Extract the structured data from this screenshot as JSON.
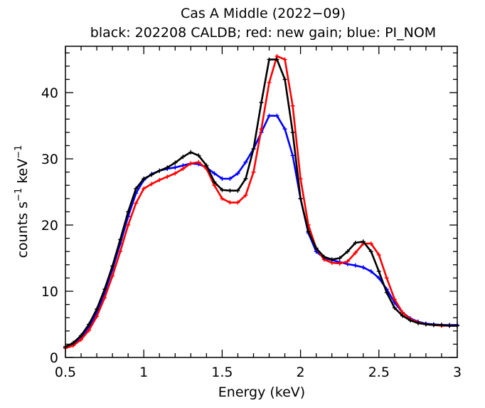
{
  "chart_data": {
    "type": "scatter",
    "title": "Cas A Middle (2022−09)",
    "subtitle": "black: 202208 CALDB; red: new gain; blue: PI_NOM",
    "xlabel": "Energy (keV)",
    "ylabel_parts": {
      "pre": "counts s",
      "exp1": "−1",
      "mid": " keV",
      "exp2": "−1"
    },
    "xlim": [
      0.5,
      3.0
    ],
    "ylim": [
      0,
      47
    ],
    "xticks": [
      0.5,
      1,
      1.5,
      2,
      2.5,
      3
    ],
    "xtick_labels": [
      "0.5",
      "1",
      "1.5",
      "2",
      "2.5",
      "3"
    ],
    "yticks": [
      0,
      10,
      20,
      30,
      40
    ],
    "ytick_labels": [
      "0",
      "10",
      "20",
      "30",
      "40"
    ],
    "grid": false,
    "series": [
      {
        "color": "#000000",
        "x": [
          0.5,
          0.55,
          0.6,
          0.65,
          0.7,
          0.75,
          0.8,
          0.85,
          0.9,
          0.95,
          1.0,
          1.05,
          1.1,
          1.15,
          1.2,
          1.25,
          1.3,
          1.35,
          1.4,
          1.45,
          1.5,
          1.55,
          1.6,
          1.65,
          1.7,
          1.75,
          1.8,
          1.85,
          1.9,
          1.95,
          2.0,
          2.05,
          2.1,
          2.15,
          2.2,
          2.25,
          2.3,
          2.35,
          2.4,
          2.45,
          2.5,
          2.55,
          2.6,
          2.65,
          2.7,
          2.75,
          2.8,
          2.85,
          2.9,
          2.95,
          3.0
        ],
        "y": [
          1.6,
          2.2,
          3.3,
          5.0,
          7.3,
          10.3,
          13.8,
          17.8,
          22.0,
          25.5,
          27.0,
          27.6,
          28.2,
          28.7,
          29.4,
          30.3,
          31.0,
          30.5,
          29.0,
          26.5,
          25.3,
          25.2,
          25.2,
          27.0,
          31.5,
          38.5,
          45.0,
          45.0,
          42.0,
          34.0,
          24.0,
          19.0,
          16.5,
          15.2,
          14.8,
          15.0,
          16.0,
          17.3,
          17.5,
          16.0,
          13.0,
          9.8,
          7.5,
          6.3,
          5.6,
          5.2,
          5.0,
          4.9,
          4.9,
          4.8,
          4.8
        ]
      },
      {
        "color": "#ff0000",
        "x": [
          0.5,
          0.55,
          0.6,
          0.65,
          0.7,
          0.75,
          0.8,
          0.85,
          0.9,
          0.95,
          1.0,
          1.05,
          1.1,
          1.15,
          1.2,
          1.25,
          1.3,
          1.35,
          1.4,
          1.45,
          1.5,
          1.55,
          1.6,
          1.65,
          1.7,
          1.75,
          1.8,
          1.85,
          1.9,
          1.95,
          2.0,
          2.05,
          2.1,
          2.15,
          2.2,
          2.25,
          2.3,
          2.35,
          2.4,
          2.45,
          2.5,
          2.55,
          2.6,
          2.65,
          2.7,
          2.75,
          2.8,
          2.85,
          2.9,
          2.95,
          3.0
        ],
        "y": [
          1.4,
          1.8,
          2.7,
          4.1,
          6.2,
          9.0,
          12.3,
          16.0,
          20.0,
          23.3,
          25.5,
          26.2,
          26.8,
          27.3,
          27.8,
          28.5,
          29.3,
          29.5,
          28.5,
          26.0,
          24.0,
          23.4,
          23.4,
          24.5,
          28.0,
          34.5,
          41.5,
          45.5,
          45.0,
          38.0,
          27.0,
          20.0,
          16.5,
          14.8,
          14.3,
          14.2,
          14.5,
          15.8,
          17.2,
          17.2,
          15.5,
          12.0,
          8.8,
          6.8,
          5.8,
          5.3,
          5.0,
          4.9,
          4.8,
          4.8,
          4.8
        ]
      },
      {
        "color": "#0000ff",
        "x": [
          0.5,
          0.55,
          0.6,
          0.65,
          0.7,
          0.75,
          0.8,
          0.85,
          0.9,
          0.95,
          1.0,
          1.05,
          1.1,
          1.15,
          1.2,
          1.25,
          1.3,
          1.35,
          1.4,
          1.45,
          1.5,
          1.55,
          1.6,
          1.65,
          1.7,
          1.75,
          1.8,
          1.85,
          1.9,
          1.95,
          2.0,
          2.05,
          2.1,
          2.15,
          2.2,
          2.25,
          2.3,
          2.35,
          2.4,
          2.45,
          2.5,
          2.55,
          2.6,
          2.65,
          2.7,
          2.75,
          2.8,
          2.85,
          2.9,
          2.95,
          3.0
        ],
        "y": [
          1.5,
          2.0,
          3.0,
          4.6,
          6.8,
          9.8,
          13.3,
          17.2,
          21.3,
          24.8,
          26.8,
          27.7,
          28.2,
          28.5,
          28.7,
          29.0,
          29.3,
          29.2,
          28.7,
          27.8,
          27.0,
          27.0,
          27.8,
          29.5,
          31.5,
          34.0,
          36.5,
          36.5,
          34.5,
          30.5,
          24.0,
          18.8,
          16.0,
          15.0,
          14.7,
          14.4,
          14.1,
          13.9,
          13.6,
          13.0,
          12.0,
          10.3,
          8.3,
          6.8,
          5.9,
          5.4,
          5.1,
          5.0,
          4.9,
          4.9,
          4.9
        ]
      }
    ]
  }
}
